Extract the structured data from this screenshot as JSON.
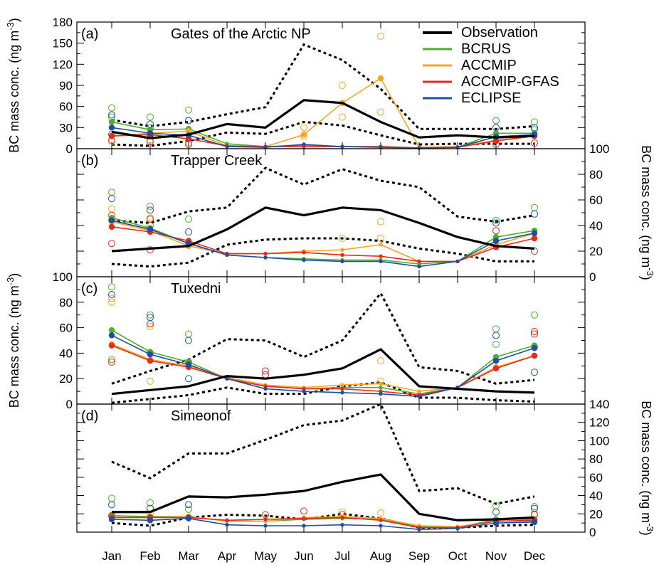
{
  "chart_data": {
    "type": "line",
    "months": [
      "Jan",
      "Feb",
      "Mar",
      "Apr",
      "May",
      "Jun",
      "Jul",
      "Aug",
      "Sep",
      "Oct",
      "Nov",
      "Dec"
    ],
    "colors": {
      "Observation": "#000000",
      "BCRUS": "#4caf2a",
      "ACCMIP": "#f5a623",
      "ACCMIP-GFAS": "#e8291c",
      "ECLIPSE": "#1f4fa3"
    },
    "legend": {
      "placement": "top-right",
      "entries": [
        "Observation",
        "BCRUS",
        "ACCMIP",
        "ACCMIP-GFAS",
        "ECLIPSE"
      ]
    },
    "panels": [
      {
        "label": "(a)",
        "title": "Gates of the Arctic NP",
        "axis_side": "left",
        "ylabel": "BC mass conc. (ng m",
        "ylabel_sup": "-3",
        "ylabel_close": ")",
        "ylim": [
          0,
          180
        ],
        "yticks": [
          0,
          30,
          60,
          90,
          120,
          150,
          180
        ],
        "obs_mean": [
          24,
          15,
          20,
          35,
          30,
          69,
          65,
          38,
          16,
          19,
          16,
          18
        ],
        "obs_upper": [
          41,
          32,
          38,
          49,
          59,
          148,
          126,
          85,
          28,
          28,
          28,
          32
        ],
        "obs_lower": [
          6,
          4,
          11,
          23,
          21,
          38,
          33,
          19,
          6,
          7,
          7,
          7
        ],
        "series": [
          {
            "name": "BCRUS",
            "values": [
              38,
              27,
              28,
              7,
              3,
              5,
              3,
              3,
              1,
              2,
              22,
              22
            ]
          },
          {
            "name": "ACCMIP",
            "values": [
              18,
              22,
              25,
              4,
              3,
              20,
              65,
              100,
              2,
              3,
              12,
              18
            ]
          },
          {
            "name": "ACCMIP-GFAS",
            "values": [
              18,
              20,
              14,
              4,
              3,
              3,
              3,
              3,
              1,
              2,
              11,
              18
            ]
          },
          {
            "name": "ECLIPSE",
            "values": [
              30,
              22,
              19,
              3,
              2,
              6,
              3,
              2,
              1,
              2,
              17,
              20
            ]
          }
        ],
        "members": [
          {
            "name": "BCRUS",
            "month_index": [
              0,
              0,
              1,
              1,
              2,
              2,
              10,
              11,
              11
            ],
            "values": [
              58,
              45,
              45,
              30,
              55,
              40,
              40,
              38,
              27
            ]
          },
          {
            "name": "ACCMIP",
            "month_index": [
              0,
              1,
              2,
              6,
              6,
              7,
              7,
              5,
              5
            ],
            "values": [
              10,
              12,
              8,
              90,
              45,
              160,
              52,
              30,
              18
            ]
          },
          {
            "name": "ACCMIP-GFAS",
            "month_index": [
              0,
              1,
              2,
              10,
              11
            ],
            "values": [
              12,
              10,
              6,
              6,
              8
            ]
          },
          {
            "name": "ECLIPSE",
            "month_index": [
              0,
              0,
              1,
              1,
              2,
              10,
              11
            ],
            "values": [
              48,
              20,
              35,
              20,
              40,
              30,
              30
            ]
          }
        ]
      },
      {
        "label": "(b)",
        "title": "Trapper Creek",
        "axis_side": "right",
        "ylabel": "BC mass conc. (ng m",
        "ylabel_sup": "-3",
        "ylabel_close": ")",
        "ylim": [
          0,
          100
        ],
        "yticks": [
          0,
          20,
          40,
          60,
          80,
          100
        ],
        "obs_mean": [
          20,
          22,
          24,
          37,
          54,
          48,
          54,
          52,
          42,
          31,
          24,
          22
        ],
        "obs_upper": [
          44,
          42,
          51,
          54,
          85,
          72,
          84,
          75,
          70,
          47,
          43,
          48
        ],
        "obs_lower": [
          10,
          8,
          11,
          25,
          29,
          30,
          30,
          28,
          22,
          18,
          12,
          12
        ],
        "series": [
          {
            "name": "BCRUS",
            "values": [
              46,
              38,
              26,
              17,
              15,
              14,
              13,
              13,
              10,
              12,
              31,
              36
            ]
          },
          {
            "name": "ACCMIP",
            "values": [
              43,
              36,
              24,
              18,
              18,
              20,
              21,
              25,
              12,
              12,
              25,
              34
            ]
          },
          {
            "name": "ACCMIP-GFAS",
            "values": [
              39,
              35,
              28,
              18,
              18,
              19,
              17,
              16,
              12,
              12,
              23,
              30
            ]
          },
          {
            "name": "ECLIPSE",
            "values": [
              44,
              37,
              26,
              17,
              15,
              13,
              12,
              12,
              8,
              12,
              28,
              34
            ]
          }
        ],
        "members": [
          {
            "name": "BCRUS",
            "month_index": [
              0,
              0,
              1,
              1,
              2,
              10,
              11
            ],
            "values": [
              66,
              44,
              55,
              40,
              45,
              44,
              54
            ]
          },
          {
            "name": "ACCMIP",
            "month_index": [
              0,
              1,
              2,
              6,
              7,
              7
            ],
            "values": [
              53,
              46,
              26,
              30,
              43,
              30
            ]
          },
          {
            "name": "ACCMIP-GFAS",
            "month_index": [
              0,
              0,
              1,
              1,
              10,
              11
            ],
            "values": [
              48,
              26,
              45,
              21,
              36,
              20
            ]
          },
          {
            "name": "ECLIPSE",
            "month_index": [
              0,
              1,
              2,
              10,
              11
            ],
            "values": [
              61,
              52,
              35,
              42,
              49
            ]
          }
        ]
      },
      {
        "label": "(c)",
        "title": "Tuxedni",
        "axis_side": "left",
        "ylabel": "BC mass conc. (ng m",
        "ylabel_sup": "-3",
        "ylabel_close": ")",
        "ylim": [
          0,
          100
        ],
        "yticks": [
          0,
          20,
          40,
          60,
          80,
          100
        ],
        "obs_mean": [
          8,
          11,
          14,
          22,
          20,
          23,
          28,
          43,
          14,
          12,
          10,
          9
        ],
        "obs_upper": [
          16,
          26,
          35,
          51,
          50,
          37,
          50,
          87,
          29,
          26,
          16,
          19
        ],
        "obs_lower": [
          1,
          4,
          7,
          13,
          8,
          8,
          14,
          17,
          5,
          5,
          3,
          2
        ],
        "series": [
          {
            "name": "BCRUS",
            "values": [
              58,
              41,
              33,
              20,
              14,
              12,
              13,
              13,
              8,
              13,
              37,
              46
            ]
          },
          {
            "name": "ACCMIP",
            "values": [
              47,
              35,
              30,
              21,
              15,
              13,
              15,
              16,
              10,
              13,
              29,
              38
            ]
          },
          {
            "name": "ACCMIP-GFAS",
            "values": [
              46,
              34,
              29,
              20,
              14,
              12,
              12,
              10,
              7,
              13,
              28,
              38
            ]
          },
          {
            "name": "ECLIPSE",
            "values": [
              54,
              39,
              31,
              20,
              12,
              10,
              9,
              8,
              6,
              13,
              34,
              44
            ]
          }
        ],
        "members": [
          {
            "name": "BCRUS",
            "month_index": [
              0,
              0,
              1,
              1,
              2,
              2,
              10,
              10,
              11,
              11
            ],
            "values": [
              92,
              35,
              70,
              40,
              55,
              33,
              59,
              47,
              70,
              45
            ]
          },
          {
            "name": "ACCMIP",
            "month_index": [
              0,
              0,
              1,
              1,
              7,
              7
            ],
            "values": [
              83,
              80,
              61,
              18,
              34,
              18
            ]
          },
          {
            "name": "ACCMIP-GFAS",
            "month_index": [
              0,
              1,
              4,
              4,
              11,
              11
            ],
            "values": [
              33,
              63,
              26,
              23,
              57,
              55
            ]
          },
          {
            "name": "ECLIPSE",
            "month_index": [
              0,
              1,
              2,
              2,
              10,
              11
            ],
            "values": [
              86,
              68,
              50,
              20,
              54,
              25
            ]
          }
        ]
      },
      {
        "label": "(d)",
        "title": "Simeonof",
        "axis_side": "right",
        "ylabel": "BC mass conc. (ng m",
        "ylabel_sup": "-3",
        "ylabel_close": ")",
        "ylim": [
          0,
          140
        ],
        "yticks": [
          0,
          20,
          40,
          60,
          80,
          100,
          120,
          140
        ],
        "obs_mean": [
          22,
          22,
          39,
          38,
          41,
          45,
          55,
          63,
          20,
          13,
          14,
          16
        ],
        "obs_upper": [
          77,
          59,
          86,
          86,
          101,
          117,
          122,
          140,
          45,
          48,
          31,
          39
        ],
        "obs_lower": [
          10,
          7,
          16,
          19,
          18,
          14,
          20,
          15,
          5,
          5,
          7,
          8
        ],
        "series": [
          {
            "name": "BCRUS",
            "values": [
              18,
              17,
              17,
              12,
              12,
              14,
              15,
              14,
              6,
              5,
              14,
              14
            ]
          },
          {
            "name": "ACCMIP",
            "values": [
              16,
              16,
              17,
              12,
              12,
              16,
              17,
              15,
              7,
              6,
              12,
              12
            ]
          },
          {
            "name": "ACCMIP-GFAS",
            "values": [
              16,
              16,
              16,
              13,
              14,
              15,
              16,
              13,
              5,
              5,
              12,
              13
            ]
          },
          {
            "name": "ECLIPSE",
            "values": [
              14,
              13,
              15,
              8,
              7,
              7,
              8,
              7,
              3,
              4,
              10,
              11
            ]
          }
        ],
        "members": [
          {
            "name": "BCRUS",
            "month_index": [
              0,
              1,
              2,
              10,
              11
            ],
            "values": [
              37,
              32,
              25,
              29,
              28
            ]
          },
          {
            "name": "ACCMIP",
            "month_index": [
              0,
              1,
              6,
              7,
              11
            ],
            "values": [
              18,
              20,
              22,
              21,
              20
            ]
          },
          {
            "name": "ACCMIP-GFAS",
            "month_index": [
              0,
              4,
              5,
              6,
              11
            ],
            "values": [
              18,
              19,
              23,
              19,
              19
            ]
          },
          {
            "name": "ECLIPSE",
            "month_index": [
              0,
              1,
              2,
              10,
              11
            ],
            "values": [
              30,
              26,
              30,
              22,
              26
            ]
          }
        ]
      }
    ]
  }
}
